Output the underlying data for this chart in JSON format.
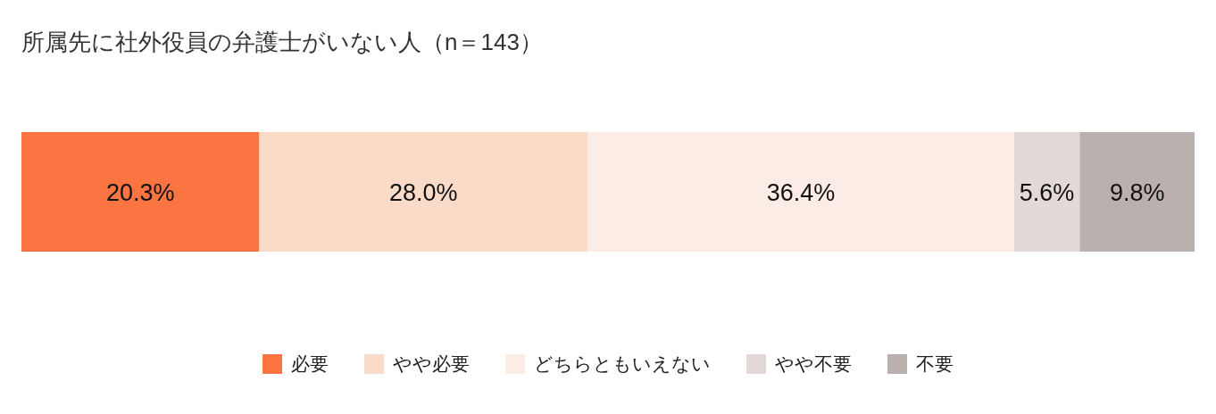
{
  "chart_data": {
    "type": "bar",
    "title": "所属先に社外役員の弁護士がいない人（n＝143）",
    "categories": [
      null
    ],
    "stacked": true,
    "orientation": "horizontal",
    "legend": "bottom",
    "series": [
      {
        "name": "必要",
        "color": "#fb7542",
        "values": [
          20.3
        ],
        "value_labels": [
          "20.3%"
        ]
      },
      {
        "name": "やや必要",
        "color": "#fadbc8",
        "values": [
          28.0
        ],
        "value_labels": [
          "28.0%"
        ]
      },
      {
        "name": "どちらともいえない",
        "color": "#fbece6",
        "values": [
          36.4
        ],
        "value_labels": [
          "36.4%"
        ]
      },
      {
        "name": "やや不要",
        "color": "#e3d9d6",
        "values": [
          5.6
        ],
        "value_labels": [
          "5.6%"
        ]
      },
      {
        "name": "不要",
        "color": "#bab0ae",
        "values": [
          9.8
        ],
        "value_labels": [
          "9.8%"
        ]
      }
    ]
  }
}
